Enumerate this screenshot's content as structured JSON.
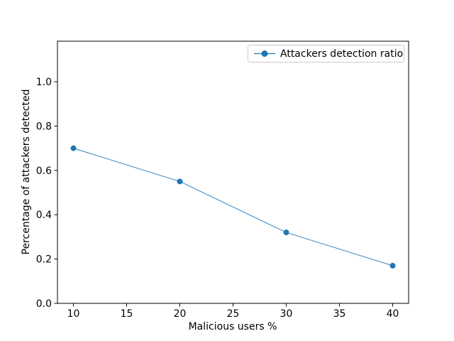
{
  "chart_data": {
    "type": "line",
    "title": "",
    "xlabel": "Malicious users %",
    "ylabel": "Percentage of attackers detected",
    "x": [
      10,
      20,
      30,
      40
    ],
    "series": [
      {
        "name": "Attackers detection ratio",
        "values": [
          0.7,
          0.55,
          0.32,
          0.17
        ],
        "color": "#1f77b4",
        "marker": "circle"
      }
    ],
    "xlim": [
      8.5,
      41.5
    ],
    "ylim": [
      0,
      1.183
    ],
    "xticks": [
      10,
      15,
      20,
      25,
      30,
      35,
      40
    ],
    "xtick_labels": [
      "10",
      "15",
      "20",
      "25",
      "30",
      "35",
      "40"
    ],
    "yticks": [
      0.0,
      0.2,
      0.4,
      0.6,
      0.8,
      1.0
    ],
    "ytick_labels": [
      "0.0",
      "0.2",
      "0.4",
      "0.6",
      "0.8",
      "1.0"
    ],
    "grid": false,
    "legend_position": "upper right",
    "background": "#ffffff",
    "spine_color": "#000000"
  }
}
